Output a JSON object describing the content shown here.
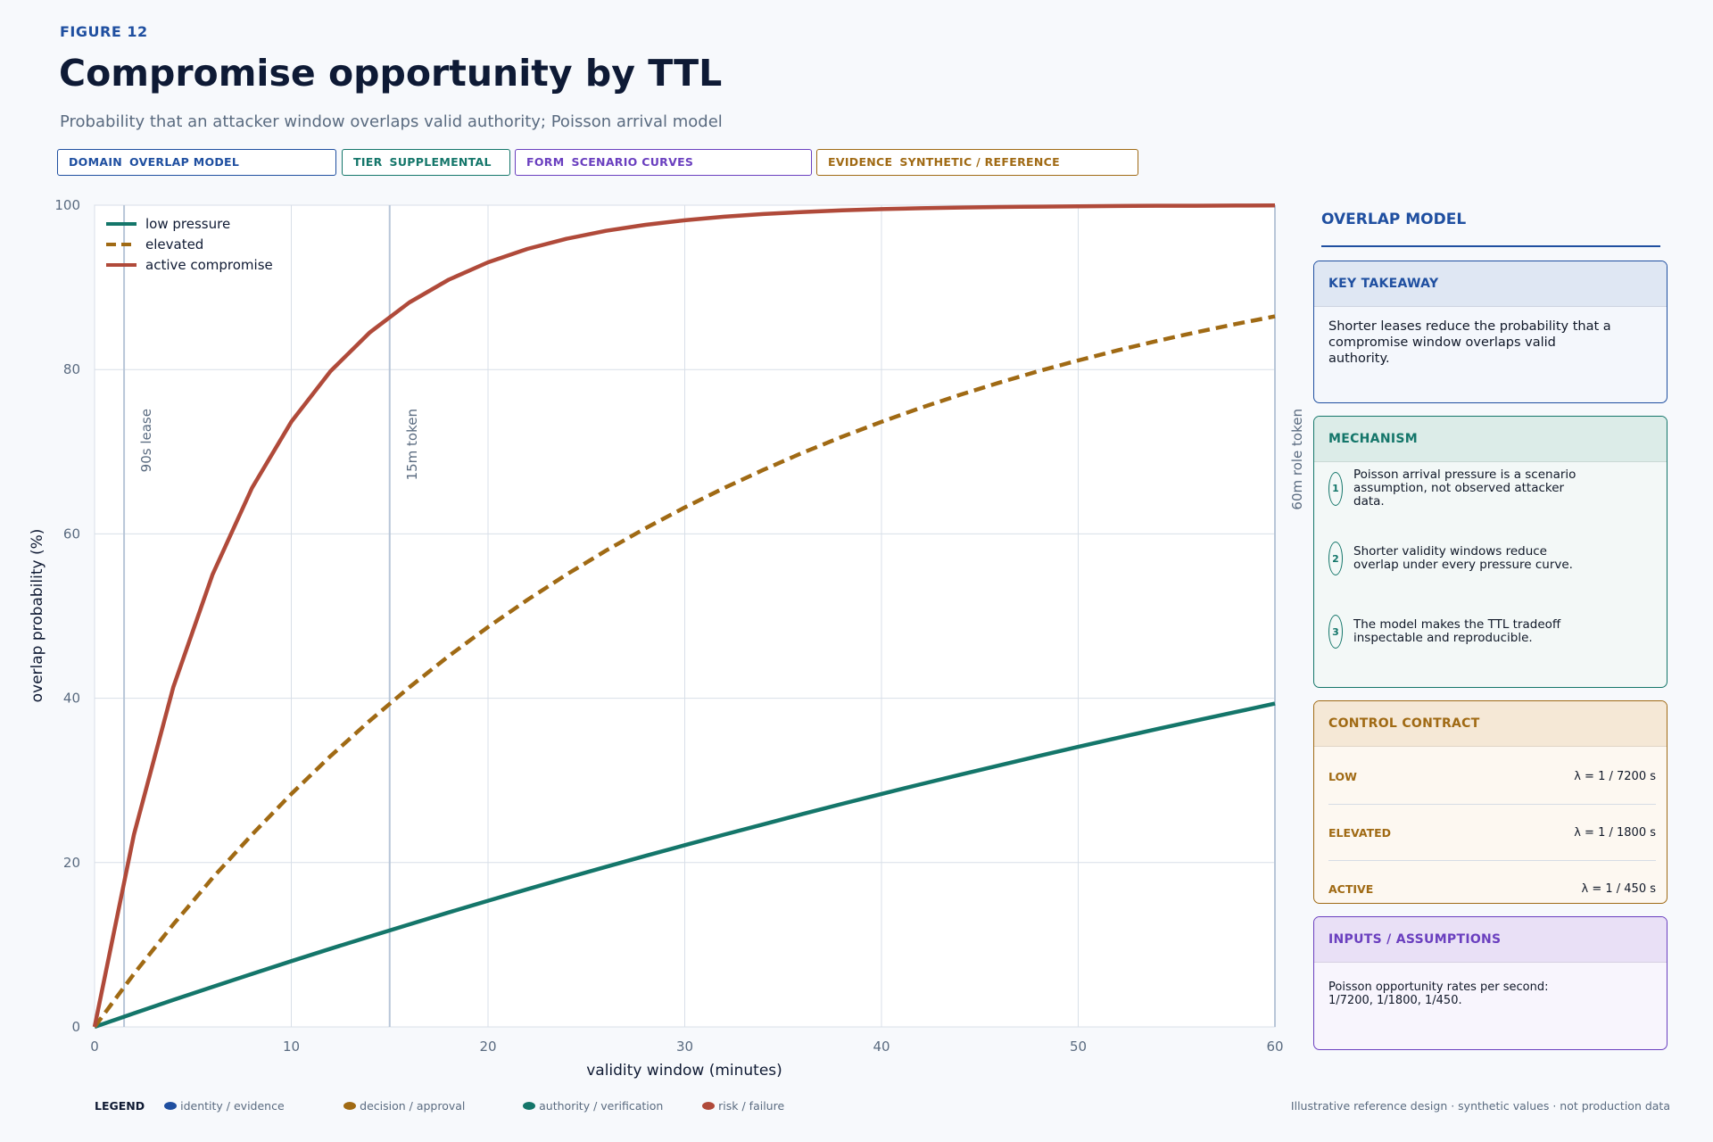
{
  "header": {
    "figure_label": "FIGURE 12",
    "title": "Compromise opportunity by TTL",
    "subtitle": "Probability that an attacker window overlaps valid authority; Poisson arrival model"
  },
  "chips": [
    {
      "key": "DOMAIN",
      "value": "OVERLAP MODEL",
      "color": "#1f4fa0"
    },
    {
      "key": "TIER",
      "value": "SUPPLEMENTAL",
      "color": "#14766a"
    },
    {
      "key": "FORM",
      "value": "SCENARIO CURVES",
      "color": "#6a3fbf"
    },
    {
      "key": "EVIDENCE",
      "value": "SYNTHETIC / REFERENCE",
      "color": "#a06a14"
    }
  ],
  "chart_data": {
    "type": "line",
    "xlabel": "validity window (minutes)",
    "ylabel": "overlap probability (%)",
    "xlim": [
      0,
      60
    ],
    "ylim": [
      0,
      100
    ],
    "xticks": [
      0,
      10,
      20,
      30,
      40,
      50,
      60
    ],
    "yticks": [
      0,
      20,
      40,
      60,
      80,
      100
    ],
    "grid": true,
    "legend_position": "top-left",
    "x": [
      0,
      2,
      4,
      6,
      8,
      10,
      12,
      14,
      16,
      18,
      20,
      22,
      24,
      26,
      28,
      30,
      32,
      34,
      36,
      38,
      40,
      42,
      44,
      46,
      48,
      50,
      52,
      54,
      56,
      58,
      60
    ],
    "series": [
      {
        "name": "low pressure",
        "color": "#14766a",
        "style": "solid",
        "values": [
          0,
          1.65,
          3.28,
          4.88,
          6.45,
          8.0,
          9.52,
          11.01,
          12.48,
          13.93,
          15.35,
          16.75,
          18.13,
          19.48,
          20.81,
          22.12,
          23.4,
          24.66,
          25.92,
          27.14,
          28.35,
          29.53,
          30.7,
          31.84,
          32.97,
          34.08,
          35.17,
          36.24,
          37.29,
          38.32,
          39.35
        ]
      },
      {
        "name": "elevated",
        "color": "#a06a14",
        "style": "dashed",
        "values": [
          0,
          6.45,
          12.48,
          18.13,
          23.4,
          28.35,
          32.97,
          37.29,
          41.34,
          45.12,
          48.66,
          51.97,
          55.07,
          57.97,
          60.68,
          63.21,
          65.58,
          67.8,
          69.88,
          71.82,
          73.64,
          75.34,
          76.93,
          78.42,
          79.81,
          81.11,
          82.33,
          83.47,
          84.54,
          85.54,
          86.47
        ]
      },
      {
        "name": "active compromise",
        "color": "#b04a3a",
        "style": "solid",
        "values": [
          0,
          23.4,
          41.34,
          55.07,
          65.58,
          73.64,
          79.81,
          84.54,
          88.16,
          90.93,
          93.05,
          94.68,
          95.92,
          96.88,
          97.61,
          98.17,
          98.6,
          98.93,
          99.18,
          99.37,
          99.52,
          99.63,
          99.72,
          99.78,
          99.83,
          99.87,
          99.9,
          99.93,
          99.94,
          99.96,
          99.97
        ]
      }
    ],
    "reference_lines": [
      {
        "x": 1.5,
        "label": "90s lease"
      },
      {
        "x": 15,
        "label": "15m token"
      },
      {
        "x": 60,
        "label": "60m role token"
      }
    ]
  },
  "side_panel": {
    "title": "OVERLAP MODEL",
    "key_takeaway": {
      "heading": "KEY TAKEAWAY",
      "text": "Shorter leases reduce the probability that a compromise window overlaps valid authority."
    },
    "mechanism": {
      "heading": "MECHANISM",
      "steps": [
        {
          "num": "1",
          "text": "Poisson arrival pressure is a scenario assumption, not observed attacker data."
        },
        {
          "num": "2",
          "text": "Shorter validity windows reduce overlap under every pressure curve."
        },
        {
          "num": "3",
          "text": "The model makes the TTL tradeoff inspectable and reproducible."
        }
      ]
    },
    "control_contract": {
      "heading": "CONTROL CONTRACT",
      "rows": [
        {
          "key": "LOW",
          "value": "λ = 1 / 7200 s"
        },
        {
          "key": "ELEVATED",
          "value": "λ = 1 / 1800 s"
        },
        {
          "key": "ACTIVE",
          "value": "λ = 1 / 450 s"
        }
      ]
    },
    "inputs": {
      "heading": "INPUTS / ASSUMPTIONS",
      "text": "Poisson opportunity rates per second: 1/7200, 1/1800, 1/450."
    }
  },
  "bottom_legend": {
    "label": "LEGEND",
    "items": [
      {
        "label": "identity / evidence",
        "color": "#1f4fa0"
      },
      {
        "label": "decision / approval",
        "color": "#a06a14"
      },
      {
        "label": "authority / verification",
        "color": "#14766a"
      },
      {
        "label": "risk / failure",
        "color": "#b04a3a"
      }
    ]
  },
  "footnote": "Illustrative reference design · synthetic values · not production data"
}
